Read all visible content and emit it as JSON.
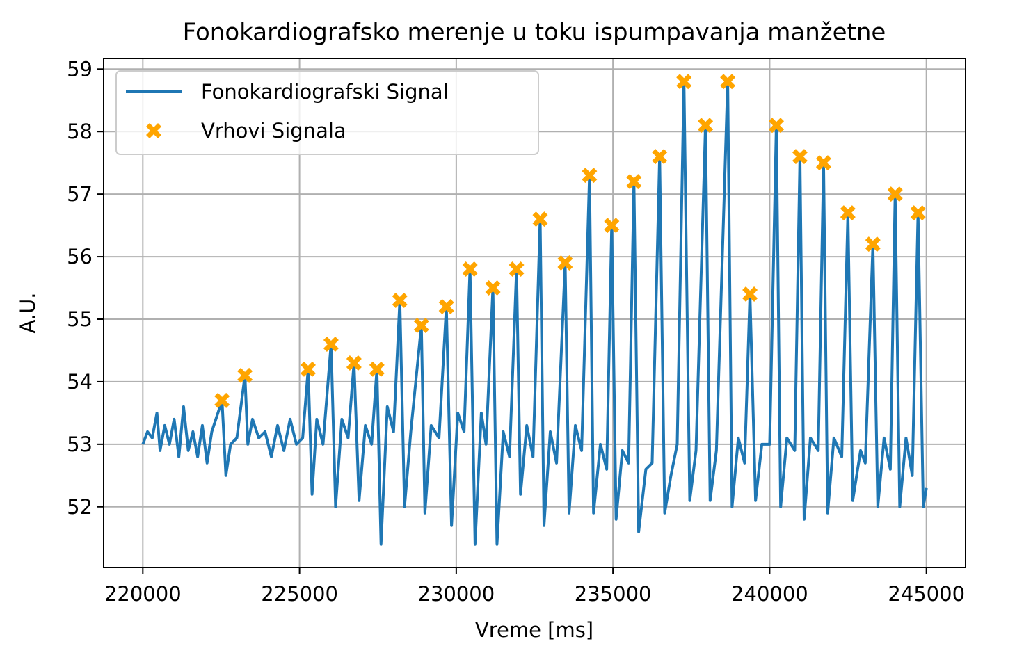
{
  "chart_data": {
    "type": "line",
    "title": "Fonokardiografsko merenje u toku ispumpavanja manžetne",
    "x_label": "Vreme [ms]",
    "y_label": "A.U.",
    "xlim": [
      218750,
      246250
    ],
    "xticks": [
      220000,
      225000,
      230000,
      235000,
      240000,
      245000
    ],
    "ylim": [
      51.03,
      59.17
    ],
    "yticks": [
      52,
      53,
      54,
      55,
      56,
      57,
      58,
      59
    ],
    "grid": true,
    "legend": "upper left",
    "series": [
      {
        "name": "Fonokardiografski Signal",
        "type": "line",
        "color": "#1f77b4",
        "x": [
          220000,
          220150,
          220300,
          220450,
          220550,
          220700,
          220850,
          221000,
          221150,
          221300,
          221450,
          221600,
          221750,
          221900,
          222050,
          222200,
          222527,
          222650,
          222800,
          223000,
          223258,
          223350,
          223500,
          223700,
          223900,
          224100,
          224300,
          224500,
          224700,
          224900,
          225100,
          225275,
          225400,
          225550,
          225750,
          226006,
          226150,
          226350,
          226550,
          226738,
          226900,
          227100,
          227300,
          227469,
          227600,
          227800,
          228000,
          228200,
          228350,
          228550,
          228887,
          229000,
          229200,
          229450,
          229685,
          229850,
          230050,
          230250,
          230439,
          230600,
          230800,
          230950,
          231170,
          231300,
          231500,
          231700,
          231924,
          232050,
          232250,
          232450,
          232677,
          232800,
          233000,
          233200,
          233475,
          233600,
          233800,
          234000,
          234251,
          234380,
          234600,
          234800,
          234960,
          235100,
          235300,
          235500,
          235669,
          235820,
          236050,
          236250,
          236489,
          236650,
          236850,
          237050,
          237265,
          237450,
          237650,
          237952,
          238100,
          238300,
          238661,
          238800,
          239000,
          239200,
          239371,
          239550,
          239750,
          240000,
          240213,
          240350,
          240550,
          240800,
          240966,
          241100,
          241300,
          241550,
          241720,
          241850,
          242050,
          242300,
          242496,
          242650,
          242900,
          243050,
          243294,
          243450,
          243650,
          243850,
          244003,
          244150,
          244350,
          244550,
          244734,
          244900,
          245000
        ],
        "values": [
          53.0,
          53.2,
          53.1,
          53.5,
          52.9,
          53.3,
          53.0,
          53.4,
          52.8,
          53.6,
          52.9,
          53.2,
          52.8,
          53.3,
          52.7,
          53.2,
          53.7,
          52.5,
          53.0,
          53.1,
          54.1,
          53.0,
          53.4,
          53.1,
          53.2,
          52.8,
          53.3,
          52.9,
          53.4,
          53.0,
          53.1,
          54.2,
          52.2,
          53.4,
          53.0,
          54.6,
          52.0,
          53.4,
          53.1,
          54.3,
          52.1,
          53.3,
          53.0,
          54.2,
          51.4,
          53.6,
          53.2,
          55.3,
          52.0,
          53.2,
          54.9,
          51.9,
          53.3,
          53.1,
          55.2,
          51.7,
          53.5,
          53.2,
          55.8,
          51.4,
          53.5,
          53.0,
          55.5,
          51.4,
          53.2,
          52.8,
          55.8,
          52.2,
          53.3,
          52.8,
          56.6,
          51.7,
          53.2,
          52.7,
          55.9,
          51.9,
          53.3,
          52.9,
          57.3,
          51.9,
          53.0,
          52.6,
          56.5,
          51.8,
          52.9,
          52.7,
          57.2,
          51.6,
          52.6,
          52.7,
          57.6,
          51.9,
          52.5,
          53.0,
          58.8,
          52.1,
          52.9,
          58.1,
          52.1,
          52.9,
          58.8,
          52.0,
          53.1,
          52.7,
          55.4,
          52.1,
          53.0,
          53.0,
          58.1,
          52.0,
          53.1,
          52.9,
          57.6,
          51.8,
          53.1,
          52.9,
          57.5,
          51.9,
          53.1,
          52.8,
          56.7,
          52.1,
          52.9,
          52.7,
          56.2,
          52.0,
          53.1,
          52.6,
          57.0,
          52.0,
          53.1,
          52.5,
          56.7,
          52.0,
          52.3
        ]
      },
      {
        "name": "Vrhovi Signala",
        "type": "scatter",
        "color": "#ffa500",
        "x": [
          222527,
          223258,
          225275,
          226006,
          226738,
          227469,
          228200,
          228887,
          229685,
          230439,
          231170,
          231924,
          232677,
          233475,
          234251,
          234960,
          235669,
          236489,
          237265,
          237952,
          238661,
          239371,
          240213,
          240966,
          241720,
          242496,
          243294,
          244003,
          244734
        ],
        "values": [
          53.7,
          54.1,
          54.2,
          54.6,
          54.3,
          54.2,
          55.3,
          54.9,
          55.2,
          55.8,
          55.5,
          55.8,
          56.6,
          55.9,
          57.3,
          56.5,
          57.2,
          57.6,
          58.8,
          58.1,
          58.8,
          55.4,
          58.1,
          57.6,
          57.5,
          56.7,
          56.2,
          57.0,
          56.7
        ]
      }
    ]
  }
}
